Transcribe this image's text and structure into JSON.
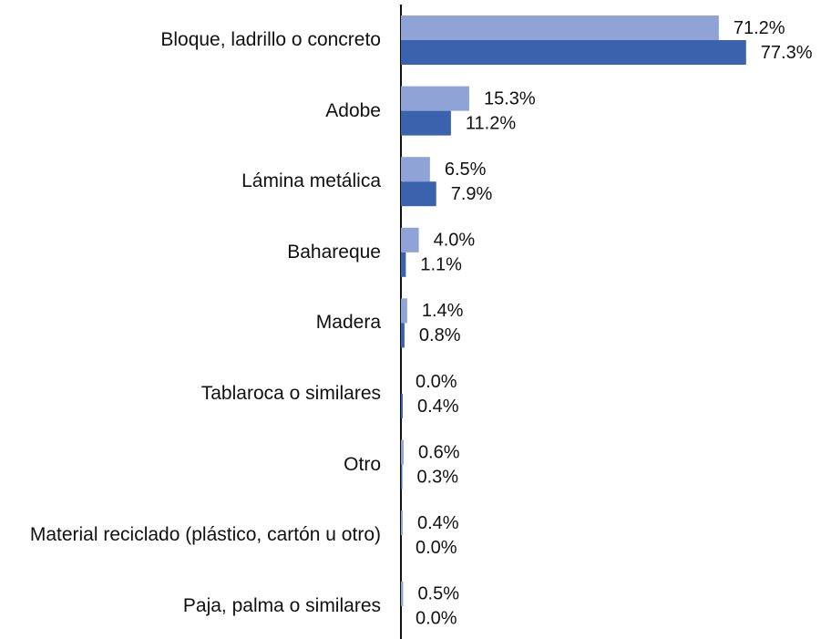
{
  "chart_data": {
    "type": "barh",
    "categories": [
      "Bloque, ladrillo o concreto",
      "Adobe",
      "Lámina metálica",
      "Bahareque",
      "Madera",
      "Tablaroca o similares",
      "Otro",
      "Material reciclado (plástico, cartón u otro)",
      "Paja, palma o similares"
    ],
    "series": [
      {
        "color": "#8fa3d6",
        "values": [
          71.2,
          15.3,
          6.5,
          4.0,
          1.4,
          0.0,
          0.6,
          0.4,
          0.5
        ],
        "value_labels": [
          "71.2%",
          "15.3%",
          "6.5%",
          "4.0%",
          "1.4%",
          "0.0%",
          "0.6%",
          "0.4%",
          "0.5%"
        ]
      },
      {
        "color": "#3a62ad",
        "values": [
          77.3,
          11.2,
          7.9,
          1.1,
          0.8,
          0.4,
          0.3,
          0.0,
          0.0
        ],
        "value_labels": [
          "77.3%",
          "11.2%",
          "7.9%",
          "1.1%",
          "0.8%",
          "0.4%",
          "0.3%",
          "0.0%",
          "0.0%"
        ]
      }
    ]
  }
}
